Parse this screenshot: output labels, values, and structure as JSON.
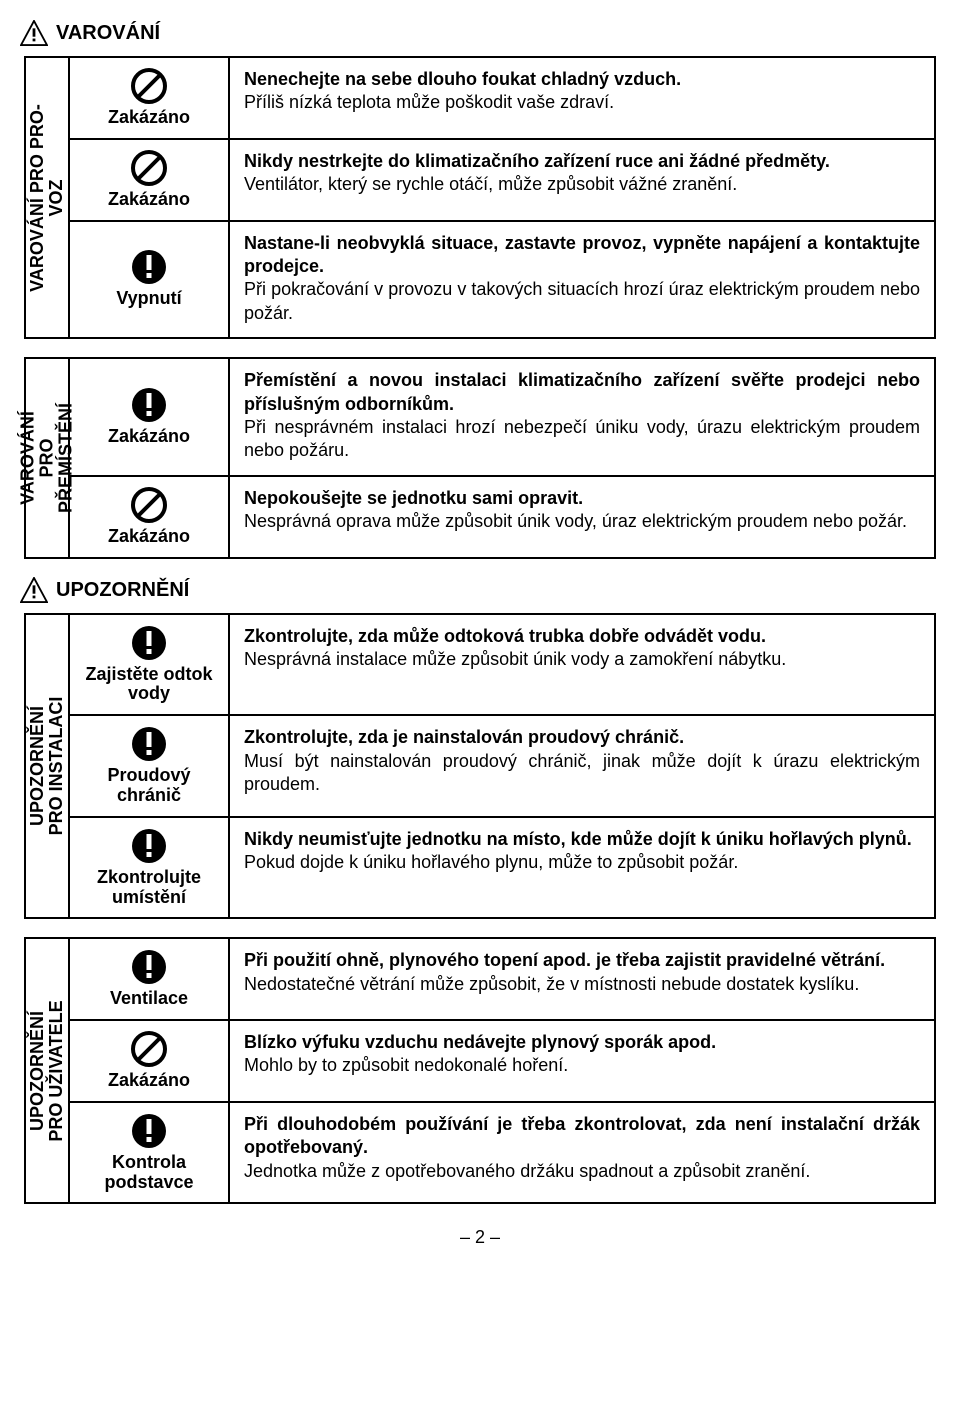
{
  "headers": {
    "warning": "VAROVÁNÍ",
    "caution": "UPOZORNĚNÍ"
  },
  "pageNumber": "– 2 –",
  "sections": [
    {
      "vlabel": "VAROVÁNÍ PRO PRO-\nVOZ",
      "rows": [
        {
          "icon": "prohibit",
          "iconLabel": "Zakázáno",
          "bold": "Nenechejte na sebe dlouho foukat chladný vzduch.",
          "body": "Příliš nízká teplota může poškodit vaše zdraví."
        },
        {
          "icon": "prohibit",
          "iconLabel": "Zakázáno",
          "bold": "Nikdy nestrkejte do klimatizačního zařízení ruce ani žádné předměty.",
          "body": "Ventilátor, který se rychle otáčí, může způsobit vážné zranění."
        },
        {
          "icon": "exclaim",
          "iconLabel": "Vypnutí",
          "bold": "Nastane-li neobvyklá situace, zastavte provoz, vypněte napájení a kontaktujte prodejce.",
          "body": "Při pokračování v provozu v takových situacích hrozí úraz elektrickým proudem nebo požár."
        }
      ]
    },
    {
      "vlabel": "VAROVÁNÍ\nPRO\nPŘEMÍSTĚNÍ",
      "rows": [
        {
          "icon": "exclaim",
          "iconLabel": "Zakázáno",
          "bold": "Přemístění a novou instalaci klimatizačního zařízení svěřte prodejci nebo příslušným odborníkům.",
          "body": "Při nesprávném instalaci hrozí nebezpečí úniku vody, úrazu elektrickým proudem nebo požáru."
        },
        {
          "icon": "prohibit",
          "iconLabel": "Zakázáno",
          "bold": "Nepokoušejte se jednotku sami opravit.",
          "body": "Nesprávná oprava může způsobit únik vody, úraz elektrickým proudem nebo požár."
        }
      ]
    },
    {
      "vlabel": "UPOZORNĚNÍ\nPRO INSTALACI",
      "rows": [
        {
          "icon": "exclaim",
          "iconLabel": "Zajistěte odtok vody",
          "bold": "Zkontrolujte, zda může odtoková trubka dobře odvádět vodu.",
          "body": "Nesprávná instalace může způsobit únik vody a zamokření nábytku."
        },
        {
          "icon": "exclaim",
          "iconLabel": "Proudový chránič",
          "bold": "Zkontrolujte, zda je nainstalován proudový chránič.",
          "body": "Musí být nainstalován proudový chránič, jinak může dojít k úrazu elektrickým proudem."
        },
        {
          "icon": "exclaim",
          "iconLabel": "Zkontrolujte umístění",
          "bold": "Nikdy neumisťujte jednotku na místo, kde může dojít k úniku hořlavých plynů.",
          "body": "Pokud dojde k úniku hořlavého plynu, může to způsobit požár."
        }
      ]
    },
    {
      "vlabel": "UPOZORNĚNÍ\nPRO UŽIVATELE",
      "rows": [
        {
          "icon": "exclaim",
          "iconLabel": "Ventilace",
          "bold": "Při použití ohně, plynového topení apod. je třeba zajistit pravidelné větrání.",
          "body": "Nedostatečné větrání může způsobit, že v místnosti nebude dostatek kyslíku."
        },
        {
          "icon": "prohibit",
          "iconLabel": "Zakázáno",
          "bold": "Blízko výfuku vzduchu nedávejte plynový sporák apod.",
          "body": "Mohlo by to způsobit nedokonalé hoření."
        },
        {
          "icon": "exclaim",
          "iconLabel": "Kontrola podstavce",
          "bold": "Při dlouhodobém používání je třeba zkontrolovat, zda není instalační držák opotřebovaný.",
          "body": "Jednotka může z opotřebovaného držáku spadnout a způsobit zranění."
        }
      ]
    }
  ]
}
